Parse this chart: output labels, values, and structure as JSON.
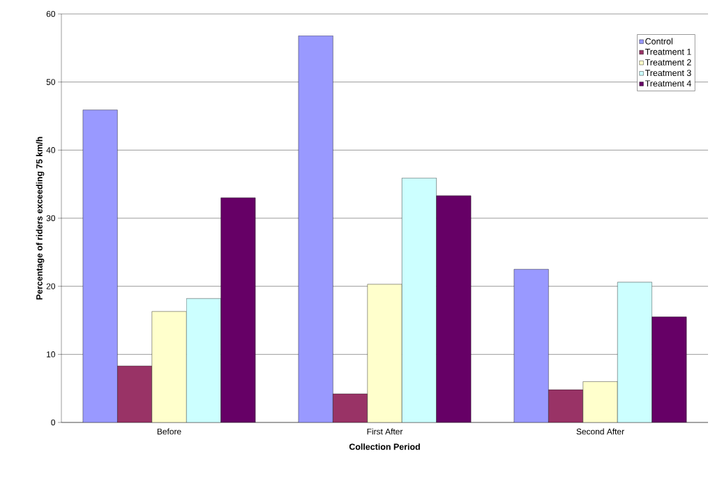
{
  "chart_data": {
    "type": "bar",
    "xlabel": "Collection Period",
    "ylabel": "Percentage of riders exceeding 75 km/h",
    "categories": [
      "Before",
      "First After",
      "Second After"
    ],
    "series": [
      {
        "name": "Control",
        "color": "#9999ff",
        "values": [
          45.9,
          56.8,
          22.5
        ]
      },
      {
        "name": "Treatment 1",
        "color": "#993366",
        "values": [
          8.3,
          4.2,
          4.8
        ]
      },
      {
        "name": "Treatment 2",
        "color": "#ffffcc",
        "values": [
          16.3,
          20.3,
          6.0
        ]
      },
      {
        "name": "Treatment 3",
        "color": "#ccffff",
        "values": [
          18.2,
          35.9,
          20.6
        ]
      },
      {
        "name": "Treatment 4",
        "color": "#660066",
        "values": [
          33.0,
          33.3,
          15.5
        ]
      }
    ],
    "ylim": [
      0,
      60
    ],
    "yticks": [
      0,
      10,
      20,
      30,
      40,
      50,
      60
    ],
    "grid": "y",
    "legend": "top right"
  }
}
